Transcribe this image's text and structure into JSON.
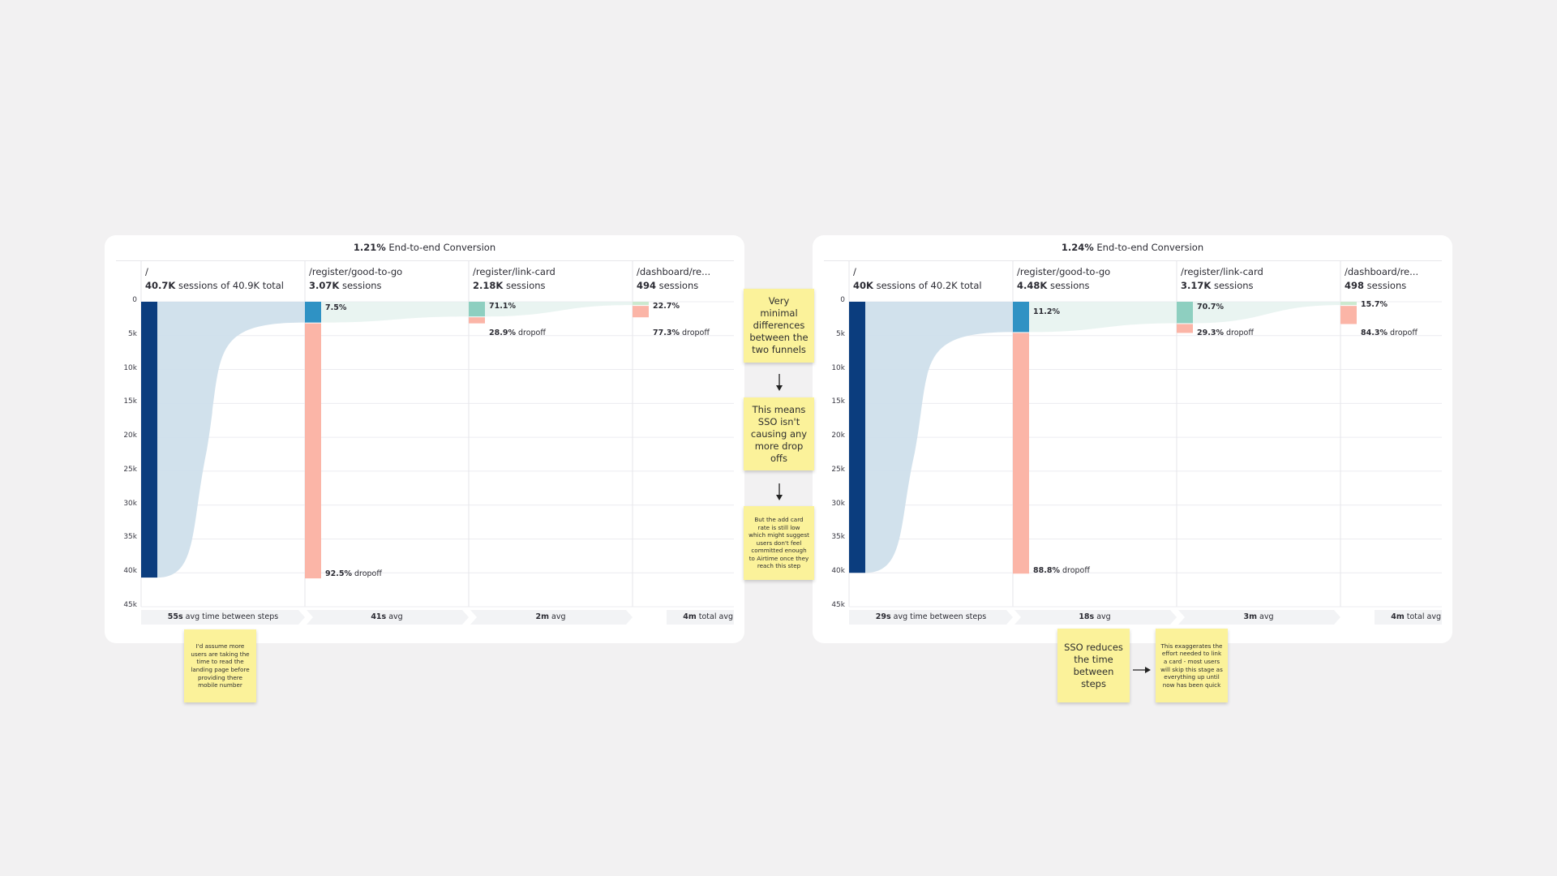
{
  "colors": {
    "background": "#f2f1f2",
    "panel": "#ffffff",
    "entry_bar": "#0b3d7e",
    "step2_bar": "#2f92c4",
    "step3_bar": "#8ecfc0",
    "step4_bar": "#cce9cf",
    "dropoff_bar": "#fbb5a7",
    "flow_fill_1": "#cfdfeb",
    "flow_fill_2": "#e3f1ee",
    "gridline": "#ececf0",
    "sticky": "#fbf29a"
  },
  "panels": [
    {
      "title_value": "1.21%",
      "title_label": " End-to-end Conversion",
      "columns": [
        {
          "path": "/",
          "sessions_value": "40.7K",
          "sessions_label": " sessions of 40.9K total"
        },
        {
          "path": "/register/good-to-go",
          "sessions_value": "3.07K",
          "sessions_label": " sessions"
        },
        {
          "path": "/register/link-card",
          "sessions_value": "2.18K",
          "sessions_label": " sessions"
        },
        {
          "path": "/dashboard/re...",
          "sessions_value": "494",
          "sessions_label": " sessions"
        }
      ],
      "conversion_labels": [
        "",
        "7.5%",
        "71.1%",
        "22.7%"
      ],
      "dropoff_labels": [
        {
          "value": "",
          "label": ""
        },
        {
          "value": "92.5%",
          "label": " dropoff"
        },
        {
          "value": "28.9%",
          "label": " dropoff"
        },
        {
          "value": "77.3%",
          "label": " dropoff"
        }
      ],
      "time_bands": [
        {
          "value": "55s",
          "label": " avg time between steps"
        },
        {
          "value": "41s",
          "label": " avg"
        },
        {
          "value": "2m",
          "label": " avg"
        },
        {
          "value": "4m",
          "label": " total avg"
        }
      ]
    },
    {
      "title_value": "1.24%",
      "title_label": " End-to-end Conversion",
      "columns": [
        {
          "path": "/",
          "sessions_value": "40K",
          "sessions_label": " sessions of 40.2K total"
        },
        {
          "path": "/register/good-to-go",
          "sessions_value": "4.48K",
          "sessions_label": " sessions"
        },
        {
          "path": "/register/link-card",
          "sessions_value": "3.17K",
          "sessions_label": " sessions"
        },
        {
          "path": "/dashboard/re...",
          "sessions_value": "498",
          "sessions_label": " sessions"
        }
      ],
      "conversion_labels": [
        "",
        "11.2%",
        "70.7%",
        "15.7%"
      ],
      "dropoff_labels": [
        {
          "value": "",
          "label": ""
        },
        {
          "value": "88.8%",
          "label": " dropoff"
        },
        {
          "value": "29.3%",
          "label": " dropoff"
        },
        {
          "value": "84.3%",
          "label": " dropoff"
        }
      ],
      "time_bands": [
        {
          "value": "29s",
          "label": " avg time between steps"
        },
        {
          "value": "18s",
          "label": " avg"
        },
        {
          "value": "3m",
          "label": " avg"
        },
        {
          "value": "4m",
          "label": " total avg"
        }
      ]
    }
  ],
  "y_axis_ticks": [
    "0",
    "5k",
    "10k",
    "15k",
    "20k",
    "25k",
    "30k",
    "35k",
    "40k",
    "45k"
  ],
  "sticky_notes": {
    "left_landing": "I'd assume more users are taking the time to read the landing page before providing there mobile number",
    "middle_1": "Very minimal differences between the two funnels",
    "middle_2": "This means SSO isn't causing any more drop offs",
    "middle_3": "But the add card rate is still low which might suggest users don't feel committed enough to Airtime once they reach this step",
    "right_sso": "SSO reduces the time between steps",
    "right_exaggerates": "This exaggerates the effort needed to link a card - most users will skip this stage as everything up until now has been quick"
  },
  "chart_data": [
    {
      "type": "bar",
      "title": "1.21% End-to-end Conversion",
      "categories": [
        "/",
        "/register/good-to-go",
        "/register/link-card",
        "/dashboard/re..."
      ],
      "series": [
        {
          "name": "sessions",
          "values": [
            40700,
            3070,
            2180,
            494
          ]
        },
        {
          "name": "dropoff",
          "values": [
            0,
            37630,
            890,
            1686
          ]
        }
      ],
      "conversion_pct": [
        null,
        7.5,
        71.1,
        22.7
      ],
      "dropoff_pct": [
        null,
        92.5,
        28.9,
        77.3
      ],
      "total_sessions": 40900,
      "avg_time_between_steps": [
        "55s",
        "41s",
        "2m"
      ],
      "total_avg_time": "4m",
      "ylim": [
        0,
        45000
      ],
      "yticks": [
        "0",
        "5k",
        "10k",
        "15k",
        "20k",
        "25k",
        "30k",
        "35k",
        "40k",
        "45k"
      ],
      "y_inverted": true,
      "grid": true
    },
    {
      "type": "bar",
      "title": "1.24% End-to-end Conversion",
      "categories": [
        "/",
        "/register/good-to-go",
        "/register/link-card",
        "/dashboard/re..."
      ],
      "series": [
        {
          "name": "sessions",
          "values": [
            40000,
            4480,
            3170,
            498
          ]
        },
        {
          "name": "dropoff",
          "values": [
            0,
            35520,
            1310,
            2672
          ]
        }
      ],
      "conversion_pct": [
        null,
        11.2,
        70.7,
        15.7
      ],
      "dropoff_pct": [
        null,
        88.8,
        29.3,
        84.3
      ],
      "total_sessions": 40200,
      "avg_time_between_steps": [
        "29s",
        "18s",
        "3m"
      ],
      "total_avg_time": "4m",
      "ylim": [
        0,
        45000
      ],
      "yticks": [
        "0",
        "5k",
        "10k",
        "15k",
        "20k",
        "25k",
        "30k",
        "35k",
        "40k",
        "45k"
      ],
      "y_inverted": true,
      "grid": true
    }
  ]
}
